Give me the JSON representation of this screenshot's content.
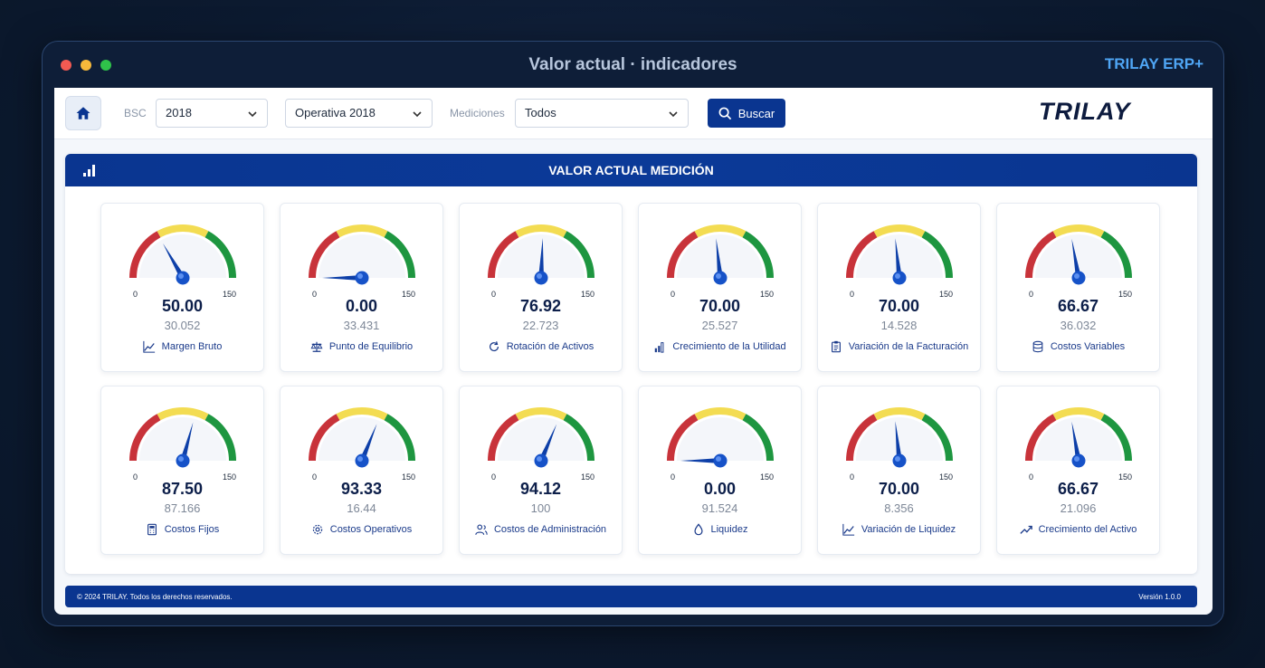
{
  "window": {
    "title": "Valor actual · indicadores",
    "brand": "TRILAY ERP+"
  },
  "toolbar": {
    "bsc_label": "BSC",
    "bsc_value": "2018",
    "plan_value": "Operativa 2018",
    "mediciones_label": "Mediciones",
    "mediciones_value": "Todos",
    "search_label": "Buscar",
    "logo": "TRILAY"
  },
  "panel": {
    "title": "VALOR ACTUAL MEDICIÓN"
  },
  "gauge_scale": {
    "min": "0",
    "max": "150",
    "min_value": 0,
    "max_value": 150
  },
  "colors": {
    "primary": "#0a3590",
    "red": "#c8333a",
    "yellow": "#f3dc52",
    "green": "#1e9640",
    "needle": "#0d3fa8"
  },
  "gauges": [
    {
      "value": 50.0,
      "value_text": "50.00",
      "sub": "30.052",
      "label": "Margen Bruto",
      "icon": "chart-line-icon"
    },
    {
      "value": 0.0,
      "value_text": "0.00",
      "sub": "33.431",
      "label": "Punto de Equilibrio",
      "icon": "scale-icon"
    },
    {
      "value": 76.92,
      "value_text": "76.92",
      "sub": "22.723",
      "label": "Rotación de Activos",
      "icon": "refresh-icon"
    },
    {
      "value": 70.0,
      "value_text": "70.00",
      "sub": "25.527",
      "label": "Crecimiento de la Utilidad",
      "icon": "bars-icon"
    },
    {
      "value": 70.0,
      "value_text": "70.00",
      "sub": "14.528",
      "label": "Variación de la Facturación",
      "icon": "clipboard-icon"
    },
    {
      "value": 66.67,
      "value_text": "66.67",
      "sub": "36.032",
      "label": "Costos Variables",
      "icon": "database-icon"
    },
    {
      "value": 87.5,
      "value_text": "87.50",
      "sub": "87.166",
      "label": "Costos Fijos",
      "icon": "calculator-icon"
    },
    {
      "value": 93.33,
      "value_text": "93.33",
      "sub": "16.44",
      "label": "Costos Operativos",
      "icon": "gear-icon"
    },
    {
      "value": 94.12,
      "value_text": "94.12",
      "sub": "100",
      "label": "Costos de Administración",
      "icon": "users-icon"
    },
    {
      "value": 0.0,
      "value_text": "0.00",
      "sub": "91.524",
      "label": "Liquidez",
      "icon": "drop-icon"
    },
    {
      "value": 70.0,
      "value_text": "70.00",
      "sub": "8.356",
      "label": "Variación de Liquidez",
      "icon": "chart-line-icon"
    },
    {
      "value": 66.67,
      "value_text": "66.67",
      "sub": "21.096",
      "label": "Crecimiento del Activo",
      "icon": "trend-up-icon"
    }
  ],
  "footer": {
    "copyright": "© 2024 TRILAY. Todos los derechos reservados.",
    "version": "Versión 1.0.0"
  }
}
